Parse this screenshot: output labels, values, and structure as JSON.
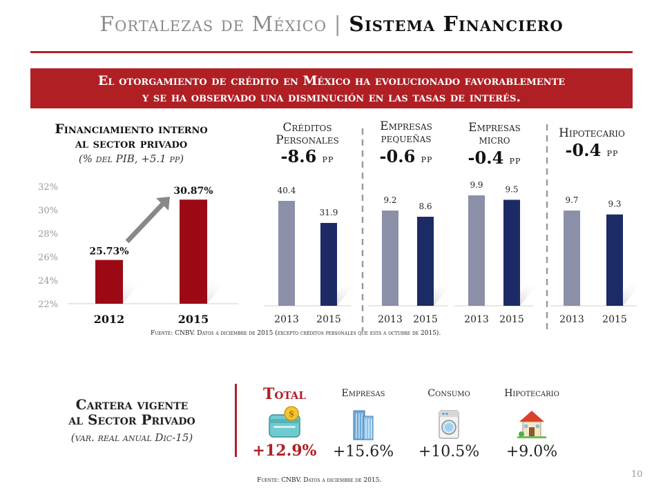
{
  "title": {
    "part1": "Fortalezas de México",
    "separator": "|",
    "part2": "Sistema Financiero"
  },
  "banner": {
    "line1": "El otorgamiento de crédito en México ha evolucionado favorablemente",
    "line2": "y se ha observado una disminución en las tasas de interés."
  },
  "colors": {
    "accent": "#b01f24",
    "bar_red": "#9b0a14",
    "bar_grey": "#8b8fa8",
    "bar_navy": "#1c2a66",
    "arrow": "#888888"
  },
  "chart_data": [
    {
      "type": "bar",
      "title": "Financiamiento interno al sector privado",
      "title_line1": "Financiamiento interno",
      "title_line2": "al sector privado",
      "subtitle": "(% del PIB, +5.1 pp)",
      "categories": [
        "2012",
        "2015"
      ],
      "values": [
        25.73,
        30.87
      ],
      "value_labels": [
        "25.73%",
        "30.87%"
      ],
      "y_ticks": [
        "32%",
        "30%",
        "28%",
        "26%",
        "24%",
        "22%"
      ],
      "ylim": [
        22,
        32
      ],
      "arrow": true
    },
    {
      "type": "bar",
      "title_line1": "Créditos",
      "title_line2": "Personales",
      "change": "-8.6",
      "unit": "pp",
      "categories": [
        "2013",
        "2015"
      ],
      "values": [
        40.4,
        31.9
      ],
      "value_labels": [
        "40.4",
        "31.9"
      ]
    },
    {
      "type": "bar",
      "title_line1": "Empresas",
      "title_line2": "pequeñas",
      "change": "-0.6",
      "unit": "pp",
      "categories": [
        "2013",
        "2015"
      ],
      "values": [
        9.2,
        8.6
      ],
      "value_labels": [
        "9.2",
        "8.6"
      ]
    },
    {
      "type": "bar",
      "title_line1": "Empresas",
      "title_line2": "micro",
      "change": "-0.4",
      "unit": "pp",
      "categories": [
        "2013",
        "2015"
      ],
      "values": [
        9.9,
        9.5
      ],
      "value_labels": [
        "9.9",
        "9.5"
      ]
    },
    {
      "type": "bar",
      "title_line1": "Hipotecario",
      "change": "-0.4",
      "unit": "pp",
      "categories": [
        "2013",
        "2015"
      ],
      "values": [
        9.7,
        9.3
      ],
      "value_labels": [
        "9.7",
        "9.3"
      ]
    }
  ],
  "source1": "Fuente: CNBV. Datos a diciembre de 2015 (excepto créditos personales que está a octubre de 2015).",
  "cartera": {
    "title_line1": "Cartera vigente",
    "title_line2": "al Sector Privado",
    "subtitle": "(var. real anual Dic-15)",
    "items": [
      {
        "label": "Total",
        "value": "+12.9%",
        "icon": "wallet-icon"
      },
      {
        "label": "Empresas",
        "value": "+15.6%",
        "icon": "office-building-icon"
      },
      {
        "label": "Consumo",
        "value": "+10.5%",
        "icon": "washing-machine-icon"
      },
      {
        "label": "Hipotecario",
        "value": "+9.0%",
        "icon": "house-icon"
      }
    ]
  },
  "source2": "Fuente: CNBV. Datos a diciembre de 2015.",
  "page_number": "10"
}
